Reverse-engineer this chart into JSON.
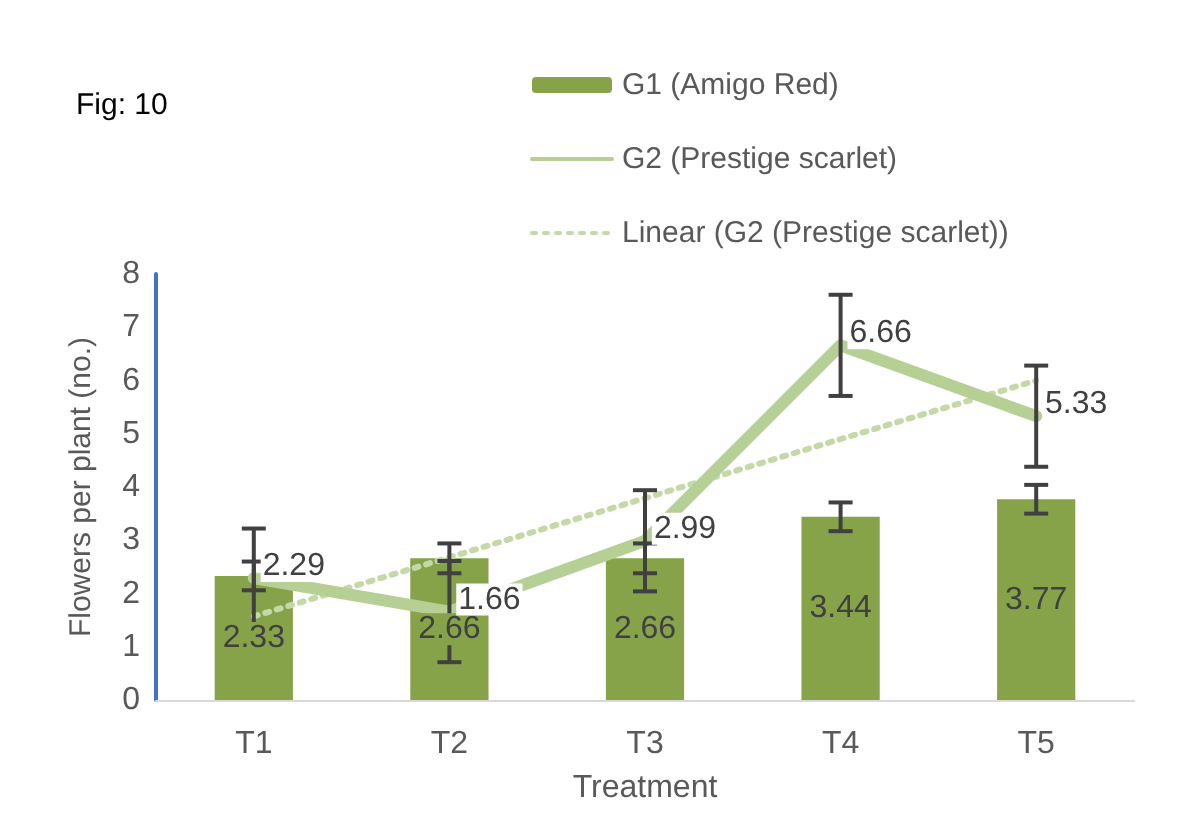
{
  "chart_data": {
    "type": "bar",
    "title": "Fig: 10",
    "xlabel": "Treatment",
    "ylabel": "Flowers per plant (no.)",
    "categories": [
      "T1",
      "T2",
      "T3",
      "T4",
      "T5"
    ],
    "series": [
      {
        "name": "G1 (Amigo Red)",
        "color": "#86a34a",
        "values": [
          2.33,
          2.66,
          2.66,
          3.44,
          3.77
        ],
        "errors": [
          0.27,
          0.28,
          0.28,
          0.27,
          0.27
        ],
        "value_labels": [
          "2.33",
          "2.66",
          "2.66",
          "3.44",
          "3.77"
        ]
      },
      {
        "name": "G2 (Prestige scarlet)",
        "type": "line",
        "color": "#b5cf95",
        "values": [
          2.29,
          1.66,
          2.99,
          6.66,
          5.33
        ],
        "errors": [
          0.93,
          0.95,
          0.95,
          0.95,
          0.95
        ],
        "value_labels": [
          "2.29",
          "1.66",
          "2.99",
          "6.66",
          "5.33"
        ]
      },
      {
        "name": "Linear (G2 (Prestige scarlet))",
        "type": "line",
        "color": "#c5d9a8",
        "line_style": "dotted",
        "x": [
          "T1",
          "T2",
          "T3",
          "T4",
          "T5"
        ],
        "values": [
          1.57,
          2.68,
          3.79,
          4.9,
          6.0
        ]
      }
    ],
    "ylim": [
      0,
      8
    ],
    "yticks": [
      0,
      1,
      2,
      3,
      4,
      5,
      6,
      7,
      8
    ],
    "grid": false,
    "legend": "top right",
    "marker": "none"
  }
}
